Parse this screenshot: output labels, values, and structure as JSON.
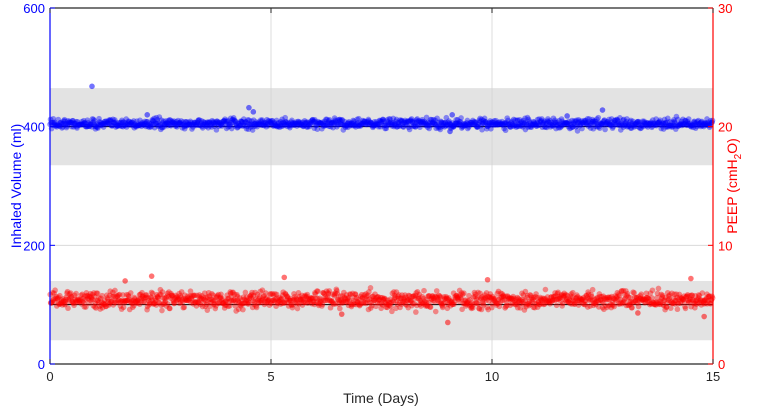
{
  "chart_data": {
    "type": "scatter",
    "x_axis": {
      "label": "Time (Days)",
      "range": [
        0,
        15
      ],
      "ticks": [
        "0",
        "5",
        "10",
        "15"
      ]
    },
    "y_left": {
      "label": "Inhaled Volume (ml)",
      "range": [
        0,
        600
      ],
      "ticks": [
        "0",
        "200",
        "400",
        "600"
      ],
      "color": "#0000ff"
    },
    "y_right": {
      "label_main": "PEEP (cmH",
      "label_sub": "2",
      "label_end": "O)",
      "range": [
        0,
        30
      ],
      "ticks": [
        "0",
        "10",
        "20",
        "30"
      ],
      "color": "#ff0000"
    },
    "grid": true,
    "series": [
      {
        "axis": "left",
        "color": "#0000ff",
        "band": [
          335,
          465
        ],
        "reference": 400,
        "baseline": 405,
        "spread": 4,
        "outliers": [
          [
            0.95,
            468
          ],
          [
            2.2,
            420
          ],
          [
            4.5,
            432
          ],
          [
            4.6,
            425
          ],
          [
            9.05,
            392
          ],
          [
            9.1,
            420
          ],
          [
            11.7,
            418
          ],
          [
            12.5,
            428
          ]
        ]
      },
      {
        "axis": "right",
        "color": "#ff0000",
        "band": [
          2,
          7
        ],
        "reference": 5,
        "baseline": 5.4,
        "spread": 0.35,
        "outliers": [
          [
            1.7,
            7.0
          ],
          [
            2.3,
            7.4
          ],
          [
            5.3,
            7.3
          ],
          [
            6.6,
            4.2
          ],
          [
            9.0,
            3.5
          ],
          [
            9.9,
            7.1
          ],
          [
            13.3,
            4.3
          ],
          [
            14.5,
            7.2
          ],
          [
            14.8,
            4.0
          ]
        ]
      }
    ]
  }
}
